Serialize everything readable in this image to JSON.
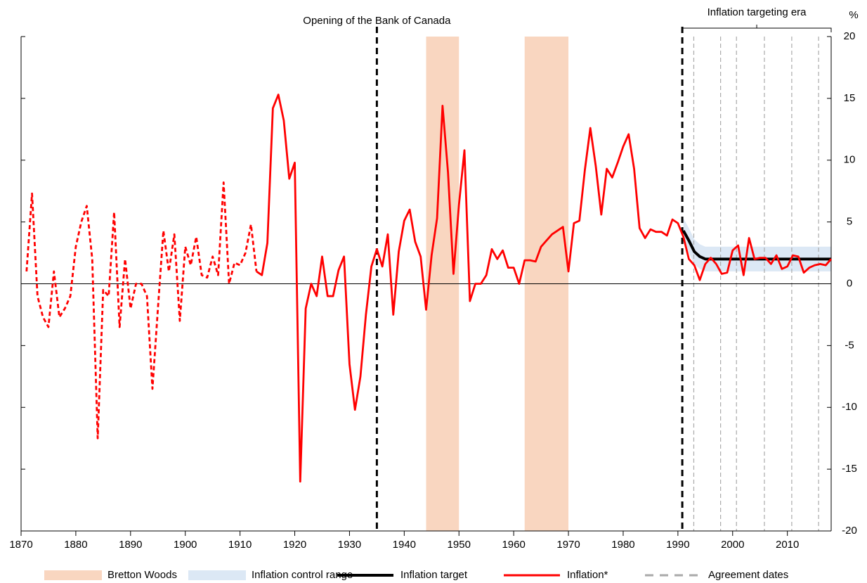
{
  "chart_data": {
    "type": "line",
    "ylabel": "%",
    "xlim": [
      1870,
      2018
    ],
    "ylim": [
      -20,
      20
    ],
    "xticks": [
      1870,
      1880,
      1890,
      1900,
      1910,
      1920,
      1930,
      1940,
      1950,
      1960,
      1970,
      1980,
      1990,
      2000,
      2010
    ],
    "yticks": [
      -20,
      -15,
      -10,
      -5,
      0,
      5,
      10,
      15,
      20
    ],
    "shaded_periods": {
      "name": "Bretton Woods",
      "color": "#f9d6c0",
      "ranges": [
        [
          1944,
          1950
        ],
        [
          1962,
          1970
        ]
      ]
    },
    "control_range": {
      "name": "Inflation control range",
      "color": "#dce8f5",
      "x": [
        1991,
        1992,
        1993,
        1994,
        1995,
        1996,
        1997,
        1998,
        1999,
        2000,
        2001,
        2002,
        2003,
        2004,
        2005,
        2006,
        2007,
        2008,
        2009,
        2010,
        2011,
        2012,
        2013,
        2014,
        2015,
        2016,
        2017,
        2018
      ],
      "lower": [
        3.3,
        2.5,
        1.6,
        1.2,
        1,
        1,
        1,
        1,
        1,
        1,
        1,
        1,
        1,
        1,
        1,
        1,
        1,
        1,
        1,
        1,
        1,
        1,
        1,
        1,
        1,
        1,
        1,
        1
      ],
      "upper": [
        5.3,
        4.5,
        3.6,
        3.2,
        3,
        3,
        3,
        3,
        3,
        3,
        3,
        3,
        3,
        3,
        3,
        3,
        3,
        3,
        3,
        3,
        3,
        3,
        3,
        3,
        3,
        3,
        3,
        3
      ]
    },
    "series": [
      {
        "name": "Inflation target",
        "color": "#000000",
        "x": [
          1991,
          1992,
          1993,
          1994,
          1995,
          1996,
          1997,
          1998,
          1999,
          2000,
          2001,
          2002,
          2003,
          2004,
          2005,
          2006,
          2007,
          2008,
          2009,
          2010,
          2011,
          2012,
          2013,
          2014,
          2015,
          2016,
          2017,
          2018
        ],
        "values": [
          4.3,
          3.5,
          2.6,
          2.2,
          2,
          2,
          2,
          2,
          2,
          2,
          2,
          2,
          2,
          2,
          2,
          2,
          2,
          2,
          2,
          2,
          2,
          2,
          2,
          2,
          2,
          2,
          2,
          2
        ]
      },
      {
        "name": "Inflation*",
        "color": "#ff0000",
        "dash_until": 1913,
        "x": [
          1871,
          1872,
          1873,
          1874,
          1875,
          1876,
          1877,
          1878,
          1879,
          1880,
          1881,
          1882,
          1883,
          1884,
          1885,
          1886,
          1887,
          1888,
          1889,
          1890,
          1891,
          1892,
          1893,
          1894,
          1895,
          1896,
          1897,
          1898,
          1899,
          1900,
          1901,
          1902,
          1903,
          1904,
          1905,
          1906,
          1907,
          1908,
          1909,
          1910,
          1911,
          1912,
          1913,
          1914,
          1915,
          1916,
          1917,
          1918,
          1919,
          1920,
          1921,
          1922,
          1923,
          1924,
          1925,
          1926,
          1927,
          1928,
          1929,
          1930,
          1931,
          1932,
          1933,
          1934,
          1935,
          1936,
          1937,
          1938,
          1939,
          1940,
          1941,
          1942,
          1943,
          1944,
          1945,
          1946,
          1947,
          1948,
          1949,
          1950,
          1951,
          1952,
          1953,
          1954,
          1955,
          1956,
          1957,
          1958,
          1959,
          1960,
          1961,
          1962,
          1963,
          1964,
          1965,
          1966,
          1967,
          1968,
          1969,
          1970,
          1971,
          1972,
          1973,
          1974,
          1975,
          1976,
          1977,
          1978,
          1979,
          1980,
          1981,
          1982,
          1983,
          1984,
          1985,
          1986,
          1987,
          1988,
          1989,
          1990,
          1991,
          1992,
          1993,
          1994,
          1995,
          1996,
          1997,
          1998,
          1999,
          2000,
          2001,
          2002,
          2003,
          2004,
          2005,
          2006,
          2007,
          2008,
          2009,
          2010,
          2011,
          2012,
          2013,
          2014,
          2015,
          2016,
          2017,
          2018
        ],
        "values": [
          1,
          7.3,
          -1,
          -2.7,
          -3.5,
          1,
          -2.7,
          -2,
          -1,
          3,
          5,
          6.3,
          2,
          -12.5,
          -0.5,
          -1,
          5.8,
          -3.5,
          2,
          -2,
          0,
          0,
          -1,
          -8.5,
          -2,
          4.3,
          1,
          4,
          -3,
          3,
          1.5,
          3.8,
          0.7,
          0.5,
          2.2,
          0.7,
          8.2,
          0,
          1.7,
          1.5,
          2.5,
          4.8,
          1,
          0.7,
          3.3,
          14.2,
          15.3,
          13.2,
          8.5,
          9.8,
          -16,
          -2,
          0,
          -1,
          2.2,
          -1,
          -1,
          1.1,
          2.2,
          -6.5,
          -10.2,
          -7.5,
          -2.5,
          1.4,
          2.8,
          1.4,
          4,
          -2.5,
          2.6,
          5.1,
          6,
          3.4,
          2.2,
          -2.1,
          2.3,
          5.3,
          14.4,
          9,
          0.8,
          6.4,
          10.8,
          -1.4,
          0,
          0,
          0.7,
          2.8,
          2,
          2.7,
          1.3,
          1.3,
          0,
          1.9,
          1.9,
          1.8,
          3,
          3.5,
          4,
          4.3,
          4.6,
          1,
          4.9,
          5.1,
          9.2,
          12.6,
          9.5,
          5.6,
          9.3,
          8.6,
          9.8,
          11.1,
          12.1,
          9.3,
          4.5,
          3.7,
          4.4,
          4.2,
          4.2,
          3.9,
          5.2,
          4.9,
          3.8,
          2,
          1.5,
          0.3,
          1.6,
          2.1,
          1.6,
          0.8,
          0.9,
          2.7,
          3.1,
          0.7,
          3.7,
          2,
          2.1,
          2.1,
          1.6,
          2.3,
          1.2,
          1.4,
          2.3,
          2.2,
          0.9,
          1.3,
          1.5,
          1.6,
          1.5,
          2
        ]
      }
    ],
    "agreement_dates": {
      "name": "Agreement dates",
      "color": "#aaaaaa",
      "x": [
        1992.9,
        1997.8,
        2000.7,
        2005.8,
        2010.8,
        2015.7
      ]
    },
    "events": [
      {
        "x": 1935,
        "label": "Opening of the Bank of Canada"
      },
      {
        "x": 1990.8
      }
    ],
    "era": {
      "label": "Inflation targeting era",
      "range": [
        1990.8,
        2018
      ]
    }
  }
}
